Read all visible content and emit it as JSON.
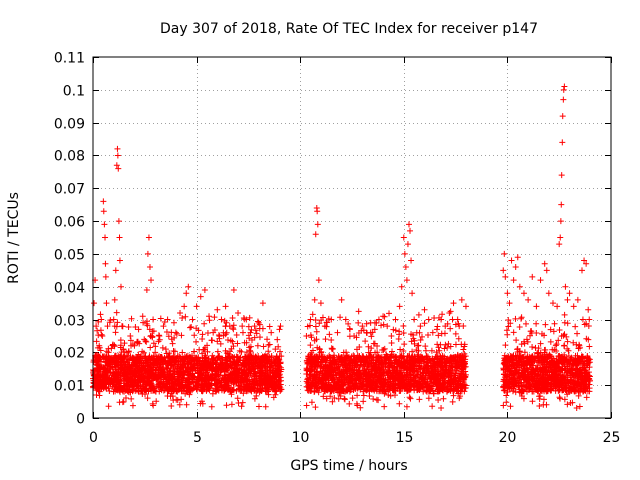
{
  "chart_data": {
    "type": "scatter",
    "title": "Day 307 of 2018, Rate Of TEC Index for receiver p147",
    "xlabel": "GPS time / hours",
    "ylabel": "ROTI / TECUs",
    "xlim": [
      0,
      25
    ],
    "ylim": [
      0,
      0.11
    ],
    "xticks": [
      0,
      5,
      10,
      15,
      20,
      25
    ],
    "xtick_labels": [
      "0",
      "5",
      "10",
      "15",
      "20",
      "25"
    ],
    "yticks": [
      0,
      0.01,
      0.02,
      0.03,
      0.04,
      0.05,
      0.06,
      0.07,
      0.08,
      0.09,
      0.1,
      0.11
    ],
    "ytick_labels": [
      "0",
      "0.01",
      "0.02",
      "0.03",
      "0.04",
      "0.05",
      "0.06",
      "0.07",
      "0.08",
      "0.09",
      "0.1",
      "0.11"
    ],
    "grid": true,
    "marker": "+",
    "color": "#ff0000",
    "series": [
      {
        "name": "ROTI",
        "points": [
          [
            0.0,
            0.012
          ],
          [
            0.05,
            0.035
          ],
          [
            0.1,
            0.042
          ],
          [
            0.15,
            0.028
          ],
          [
            0.2,
            0.015
          ],
          [
            0.25,
            0.01
          ],
          [
            0.3,
            0.022
          ],
          [
            0.35,
            0.018
          ],
          [
            0.4,
            0.03
          ],
          [
            0.45,
            0.025
          ],
          [
            0.5,
            0.066
          ],
          [
            0.52,
            0.063
          ],
          [
            0.55,
            0.059
          ],
          [
            0.58,
            0.055
          ],
          [
            0.6,
            0.047
          ],
          [
            0.62,
            0.043
          ],
          [
            0.65,
            0.035
          ],
          [
            0.7,
            0.028
          ],
          [
            0.75,
            0.02
          ],
          [
            0.8,
            0.015
          ],
          [
            0.9,
            0.012
          ],
          [
            1.0,
            0.03
          ],
          [
            1.05,
            0.036
          ],
          [
            1.1,
            0.045
          ],
          [
            1.15,
            0.077
          ],
          [
            1.18,
            0.082
          ],
          [
            1.2,
            0.08
          ],
          [
            1.22,
            0.076
          ],
          [
            1.25,
            0.06
          ],
          [
            1.28,
            0.055
          ],
          [
            1.3,
            0.048
          ],
          [
            1.35,
            0.04
          ],
          [
            1.4,
            0.028
          ],
          [
            1.5,
            0.015
          ],
          [
            1.6,
            0.02
          ],
          [
            1.7,
            0.012
          ],
          [
            1.8,
            0.025
          ],
          [
            1.9,
            0.018
          ],
          [
            2.0,
            0.022
          ],
          [
            2.2,
            0.027
          ],
          [
            2.4,
            0.031
          ],
          [
            2.6,
            0.039
          ],
          [
            2.65,
            0.05
          ],
          [
            2.7,
            0.055
          ],
          [
            2.75,
            0.046
          ],
          [
            2.8,
            0.042
          ],
          [
            2.9,
            0.03
          ],
          [
            3.0,
            0.02
          ],
          [
            3.2,
            0.025
          ],
          [
            3.4,
            0.028
          ],
          [
            3.6,
            0.03
          ],
          [
            3.8,
            0.024
          ],
          [
            4.0,
            0.026
          ],
          [
            4.2,
            0.032
          ],
          [
            4.4,
            0.034
          ],
          [
            4.5,
            0.038
          ],
          [
            4.6,
            0.04
          ],
          [
            4.8,
            0.03
          ],
          [
            5.0,
            0.034
          ],
          [
            5.2,
            0.037
          ],
          [
            5.4,
            0.039
          ],
          [
            5.6,
            0.031
          ],
          [
            5.8,
            0.026
          ],
          [
            6.0,
            0.033
          ],
          [
            6.2,
            0.03
          ],
          [
            6.4,
            0.034
          ],
          [
            6.6,
            0.028
          ],
          [
            6.8,
            0.039
          ],
          [
            7.0,
            0.032
          ],
          [
            7.2,
            0.028
          ],
          [
            7.4,
            0.03
          ],
          [
            7.6,
            0.026
          ],
          [
            7.8,
            0.028
          ],
          [
            8.0,
            0.029
          ],
          [
            8.2,
            0.035
          ],
          [
            8.4,
            0.024
          ],
          [
            8.6,
            0.026
          ],
          [
            8.8,
            0.021
          ],
          [
            9.0,
            0.027
          ],
          [
            9.05,
            0.028
          ],
          [
            10.3,
            0.025
          ],
          [
            10.5,
            0.03
          ],
          [
            10.7,
            0.036
          ],
          [
            10.75,
            0.056
          ],
          [
            10.8,
            0.064
          ],
          [
            10.82,
            0.063
          ],
          [
            10.85,
            0.059
          ],
          [
            10.9,
            0.042
          ],
          [
            11.0,
            0.035
          ],
          [
            11.2,
            0.028
          ],
          [
            11.5,
            0.03
          ],
          [
            11.8,
            0.026
          ],
          [
            12.0,
            0.036
          ],
          [
            12.2,
            0.03
          ],
          [
            12.4,
            0.027
          ],
          [
            12.6,
            0.025
          ],
          [
            12.8,
            0.029
          ],
          [
            13.0,
            0.028
          ],
          [
            13.2,
            0.026
          ],
          [
            13.4,
            0.029
          ],
          [
            13.6,
            0.027
          ],
          [
            13.8,
            0.03
          ],
          [
            14.0,
            0.031
          ],
          [
            14.2,
            0.028
          ],
          [
            14.4,
            0.025
          ],
          [
            14.6,
            0.03
          ],
          [
            14.8,
            0.034
          ],
          [
            14.9,
            0.04
          ],
          [
            15.0,
            0.055
          ],
          [
            15.05,
            0.05
          ],
          [
            15.1,
            0.046
          ],
          [
            15.15,
            0.042
          ],
          [
            15.2,
            0.053
          ],
          [
            15.25,
            0.059
          ],
          [
            15.3,
            0.057
          ],
          [
            15.35,
            0.048
          ],
          [
            15.4,
            0.038
          ],
          [
            15.5,
            0.03
          ],
          [
            15.8,
            0.028
          ],
          [
            16.0,
            0.033
          ],
          [
            16.2,
            0.03
          ],
          [
            16.4,
            0.026
          ],
          [
            16.6,
            0.027
          ],
          [
            16.8,
            0.03
          ],
          [
            17.0,
            0.028
          ],
          [
            17.2,
            0.032
          ],
          [
            17.4,
            0.035
          ],
          [
            17.6,
            0.03
          ],
          [
            17.8,
            0.036
          ],
          [
            18.0,
            0.034
          ],
          [
            19.8,
            0.045
          ],
          [
            19.85,
            0.05
          ],
          [
            19.9,
            0.043
          ],
          [
            20.0,
            0.038
          ],
          [
            20.1,
            0.035
          ],
          [
            20.2,
            0.048
          ],
          [
            20.3,
            0.042
          ],
          [
            20.4,
            0.046
          ],
          [
            20.5,
            0.049
          ],
          [
            20.6,
            0.04
          ],
          [
            20.8,
            0.038
          ],
          [
            21.0,
            0.036
          ],
          [
            21.2,
            0.043
          ],
          [
            21.4,
            0.034
          ],
          [
            21.6,
            0.042
          ],
          [
            21.8,
            0.047
          ],
          [
            21.9,
            0.045
          ],
          [
            22.0,
            0.038
          ],
          [
            22.2,
            0.035
          ],
          [
            22.4,
            0.034
          ],
          [
            22.5,
            0.053
          ],
          [
            22.55,
            0.055
          ],
          [
            22.58,
            0.06
          ],
          [
            22.6,
            0.065
          ],
          [
            22.62,
            0.074
          ],
          [
            22.65,
            0.084
          ],
          [
            22.67,
            0.092
          ],
          [
            22.7,
            0.097
          ],
          [
            22.72,
            0.1
          ],
          [
            22.75,
            0.101
          ],
          [
            22.8,
            0.04
          ],
          [
            22.9,
            0.036
          ],
          [
            23.0,
            0.038
          ],
          [
            23.2,
            0.034
          ],
          [
            23.4,
            0.036
          ],
          [
            23.6,
            0.045
          ],
          [
            23.7,
            0.048
          ],
          [
            23.8,
            0.047
          ],
          [
            23.9,
            0.033
          ],
          [
            23.95,
            0.03
          ]
        ]
      }
    ],
    "data_ranges": [
      [
        0.0,
        9.1
      ],
      [
        10.3,
        18.0
      ],
      [
        19.8,
        24.0
      ]
    ]
  }
}
